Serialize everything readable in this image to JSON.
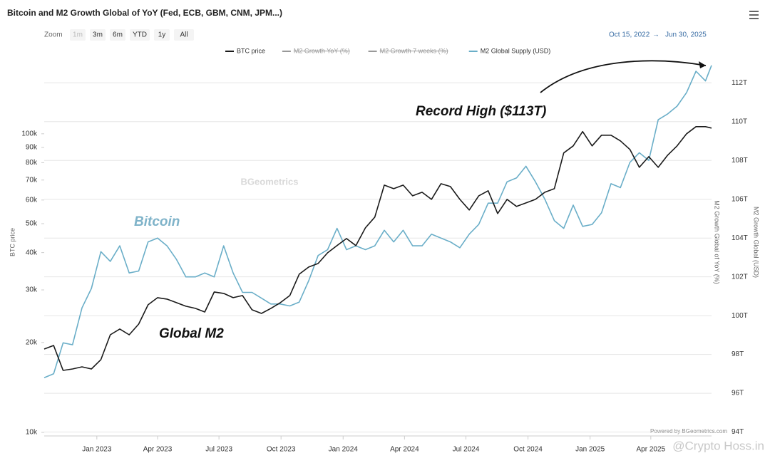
{
  "chart_data": {
    "type": "line",
    "title": "Bitcoin and M2 Growth Global of YoY (Fed, ECB, GBM, CNM, JPM...)",
    "zoom_label": "Zoom",
    "zoom_buttons": [
      "1m",
      "3m",
      "6m",
      "YTD",
      "1y",
      "All"
    ],
    "range_labels": [
      "Oct 15, 2022",
      "Jun 30, 2025"
    ],
    "range_arrow": "→",
    "y_label": "BTC price",
    "y2_labels": [
      "M2 Growth Global of YoY (%)",
      "M2 Growth Global (USD)"
    ],
    "hidden_series": [
      "M2 Growth YoY (%)",
      "M2 Growth 7 weeks (%)"
    ],
    "annotations": [
      "Record High ($113T)",
      "Bitcoin",
      "Global M2"
    ],
    "watermark": "BGeometrics",
    "credit": "Powered by BGeometrics.com",
    "overlay": "@Crypto Hoss.in",
    "log_y": true,
    "grid": true,
    "x": [
      "2022-10-15",
      "2022-10-29",
      "2022-11-12",
      "2022-11-26",
      "2022-12-10",
      "2022-12-24",
      "2023-01-07",
      "2023-01-21",
      "2023-02-04",
      "2023-02-18",
      "2023-03-04",
      "2023-03-18",
      "2023-04-01",
      "2023-04-15",
      "2023-04-29",
      "2023-05-13",
      "2023-05-27",
      "2023-06-10",
      "2023-06-24",
      "2023-07-08",
      "2023-07-22",
      "2023-08-05",
      "2023-08-19",
      "2023-09-02",
      "2023-09-16",
      "2023-09-30",
      "2023-10-14",
      "2023-10-28",
      "2023-11-11",
      "2023-11-25",
      "2023-12-09",
      "2023-12-23",
      "2024-01-06",
      "2024-01-20",
      "2024-02-03",
      "2024-02-17",
      "2024-03-02",
      "2024-03-16",
      "2024-03-30",
      "2024-04-13",
      "2024-04-27",
      "2024-05-11",
      "2024-05-25",
      "2024-06-08",
      "2024-06-22",
      "2024-07-06",
      "2024-07-20",
      "2024-08-03",
      "2024-08-17",
      "2024-08-31",
      "2024-09-14",
      "2024-09-28",
      "2024-10-12",
      "2024-10-26",
      "2024-11-09",
      "2024-11-23",
      "2024-12-07",
      "2024-12-21",
      "2025-01-04",
      "2025-01-18",
      "2025-02-01",
      "2025-02-15",
      "2025-03-01",
      "2025-03-15",
      "2025-03-29",
      "2025-04-12",
      "2025-04-26",
      "2025-05-10",
      "2025-05-24",
      "2025-06-07",
      "2025-06-21",
      "2025-06-30"
    ],
    "series": [
      {
        "name": "BTC price",
        "color": "#1a1a1a",
        "axis": "y",
        "values": [
          19020,
          19550,
          16130,
          16310,
          16580,
          16310,
          17520,
          21230,
          22190,
          21230,
          23050,
          26750,
          28250,
          27950,
          27190,
          26450,
          26020,
          25310,
          29530,
          29200,
          28250,
          28720,
          25740,
          25030,
          26020,
          27190,
          28720,
          33870,
          35780,
          36780,
          39940,
          42210,
          44590,
          42210,
          48420,
          52590,
          67320,
          65490,
          67320,
          61990,
          63710,
          60310,
          68060,
          66580,
          60310,
          55550,
          61990,
          64430,
          54050,
          60310,
          57100,
          58680,
          60310,
          63710,
          65490,
          86260,
          91100,
          101700,
          91100,
          98900,
          98900,
          94650,
          88620,
          77230,
          83850,
          77230,
          84790,
          91100,
          100000,
          105650,
          105650,
          104500
        ]
      },
      {
        "name": "M2 Global Supply (USD)",
        "color": "#6aaec8",
        "axis": "y2",
        "values": [
          96.8,
          97.0,
          98.6,
          98.5,
          100.4,
          101.4,
          103.3,
          102.8,
          103.6,
          102.2,
          102.3,
          103.8,
          104.0,
          103.6,
          102.9,
          102.0,
          102.0,
          102.2,
          102.0,
          103.6,
          102.2,
          101.2,
          101.2,
          100.9,
          100.6,
          100.6,
          100.5,
          100.7,
          101.8,
          103.1,
          103.4,
          104.5,
          103.4,
          103.6,
          103.4,
          103.6,
          104.4,
          103.8,
          104.4,
          103.6,
          103.6,
          104.2,
          104.0,
          103.8,
          103.5,
          104.2,
          104.7,
          105.8,
          105.8,
          106.9,
          107.1,
          107.7,
          106.9,
          106.0,
          104.9,
          104.5,
          105.7,
          104.6,
          104.7,
          105.3,
          106.8,
          106.6,
          107.9,
          108.4,
          108.0,
          110.1,
          110.4,
          110.8,
          111.5,
          112.6,
          112.1,
          112.9
        ]
      }
    ],
    "xlim": [
      "2022-10-15",
      "2025-06-30"
    ],
    "xticks": [
      {
        "value": "2023-01-01",
        "label": "Jan 2023"
      },
      {
        "value": "2023-04-01",
        "label": "Apr 2023"
      },
      {
        "value": "2023-07-01",
        "label": "Jul 2023"
      },
      {
        "value": "2023-10-01",
        "label": "Oct 2023"
      },
      {
        "value": "2024-01-01",
        "label": "Jan 2024"
      },
      {
        "value": "2024-04-01",
        "label": "Apr 2024"
      },
      {
        "value": "2024-07-01",
        "label": "Jul 2024"
      },
      {
        "value": "2024-10-01",
        "label": "Oct 2024"
      },
      {
        "value": "2025-01-01",
        "label": "Jan 2025"
      },
      {
        "value": "2025-04-01",
        "label": "Apr 2025"
      }
    ],
    "ylim": [
      9730,
      191000
    ],
    "yticks": [
      {
        "value": 10000,
        "label": "10k"
      },
      {
        "value": 20000,
        "label": "20k"
      },
      {
        "value": 30000,
        "label": "30k"
      },
      {
        "value": 40000,
        "label": "40k"
      },
      {
        "value": 50000,
        "label": "50k"
      },
      {
        "value": 60000,
        "label": "60k"
      },
      {
        "value": 70000,
        "label": "70k"
      },
      {
        "value": 80000,
        "label": "80k"
      },
      {
        "value": 90000,
        "label": "90k"
      },
      {
        "value": 100000,
        "label": "100k"
      }
    ],
    "y2lim": [
      93.8,
      113.7
    ],
    "y2ticks": [
      {
        "value": 94,
        "label": "94T"
      },
      {
        "value": 96,
        "label": "96T"
      },
      {
        "value": 98,
        "label": "98T"
      },
      {
        "value": 100,
        "label": "100T"
      },
      {
        "value": 102,
        "label": "102T"
      },
      {
        "value": 104,
        "label": "104T"
      },
      {
        "value": 106,
        "label": "106T"
      },
      {
        "value": 108,
        "label": "108T"
      },
      {
        "value": 110,
        "label": "110T"
      },
      {
        "value": 112,
        "label": "112T"
      }
    ]
  }
}
